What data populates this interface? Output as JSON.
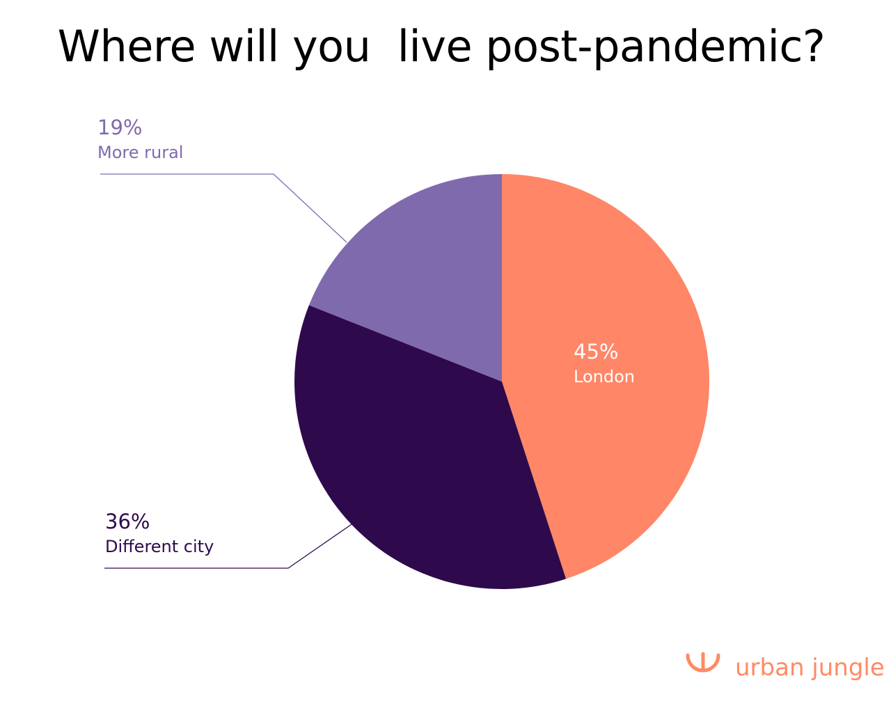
{
  "title": "Where will you  live post-pandemic?",
  "brand": {
    "name": "urban jungle",
    "color": "#ff8a65",
    "icon": "smile-arc-icon"
  },
  "chart_data": {
    "type": "pie",
    "title": "Where will you  live post-pandemic?",
    "start_angle_deg": 0,
    "direction": "clockwise",
    "slices": [
      {
        "label": "London",
        "value": 45,
        "value_label": "45%",
        "color": "#ff8667",
        "label_color": "#ffffff"
      },
      {
        "label": "Different city",
        "value": 36,
        "value_label": "36%",
        "color": "#2e0a4c",
        "label_color": "#2e0a4c"
      },
      {
        "label": "More rural",
        "value": 19,
        "value_label": "19%",
        "color": "#806aae",
        "label_color": "#806aae"
      }
    ]
  }
}
